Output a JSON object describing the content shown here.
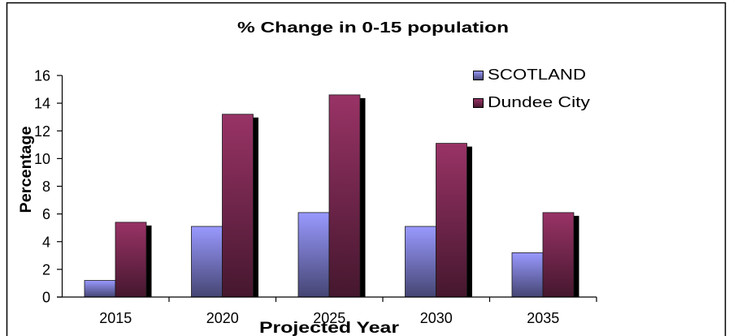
{
  "chart_data": {
    "type": "bar",
    "title": "% Change in 0-15 population",
    "xlabel": "Projected Year",
    "ylabel": "Percentage",
    "categories": [
      "2015",
      "2020",
      "2025",
      "2030",
      "2035"
    ],
    "series": [
      {
        "name": "SCOTLAND",
        "color": "#9999FF",
        "values": [
          1.2,
          5.1,
          6.1,
          5.1,
          3.2
        ]
      },
      {
        "name": "Dundee City",
        "color": "#993366",
        "values": [
          5.4,
          13.2,
          14.6,
          11.1,
          6.1
        ]
      }
    ],
    "ylim": [
      0,
      16
    ],
    "yticks": [
      0,
      2,
      4,
      6,
      8,
      10,
      12,
      14,
      16
    ],
    "grid": false,
    "legend": "top-right"
  }
}
